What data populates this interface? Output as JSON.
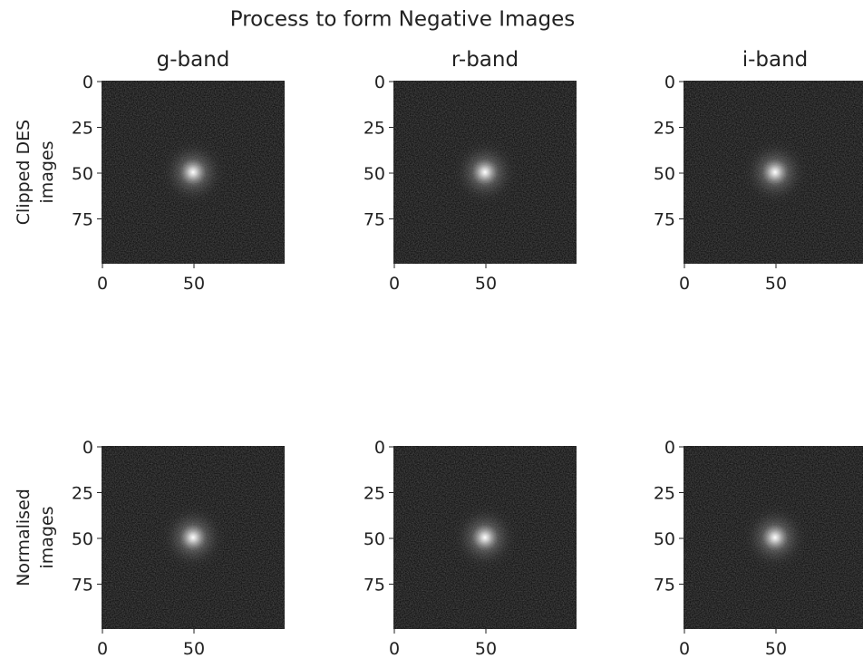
{
  "title": "Process to form Negative Images",
  "chart_data": [
    {
      "type": "image",
      "title": "g-band",
      "ylabel": [
        "Clipped DES",
        "images"
      ],
      "xlim": [
        -0.5,
        99.5
      ],
      "ylim": [
        99.5,
        -0.5
      ],
      "xticks": [
        0,
        50
      ],
      "yticks": [
        0,
        25,
        50,
        75
      ],
      "cmap": "gray"
    },
    {
      "type": "image",
      "title": "r-band",
      "xlim": [
        -0.5,
        99.5
      ],
      "ylim": [
        99.5,
        -0.5
      ],
      "xticks": [
        0,
        50
      ],
      "yticks": [
        0,
        25,
        50,
        75
      ],
      "cmap": "gray"
    },
    {
      "type": "image",
      "title": "i-band",
      "xlim": [
        -0.5,
        99.5
      ],
      "ylim": [
        99.5,
        -0.5
      ],
      "xticks": [
        0,
        50
      ],
      "yticks": [
        0,
        25,
        50,
        75
      ],
      "cmap": "gray"
    },
    {
      "type": "image",
      "ylabel": [
        "Normalised",
        "images"
      ],
      "xlim": [
        -0.5,
        99.5
      ],
      "ylim": [
        99.5,
        -0.5
      ],
      "xticks": [
        0,
        50
      ],
      "yticks": [
        0,
        25,
        50,
        75
      ],
      "cmap": "gray"
    },
    {
      "type": "image",
      "xlim": [
        -0.5,
        99.5
      ],
      "ylim": [
        99.5,
        -0.5
      ],
      "xticks": [
        0,
        50
      ],
      "yticks": [
        0,
        25,
        50,
        75
      ],
      "cmap": "gray"
    },
    {
      "type": "image",
      "xlim": [
        -0.5,
        99.5
      ],
      "ylim": [
        99.5,
        -0.5
      ],
      "xticks": [
        0,
        50
      ],
      "yticks": [
        0,
        25,
        50,
        75
      ],
      "cmap": "gray"
    }
  ]
}
